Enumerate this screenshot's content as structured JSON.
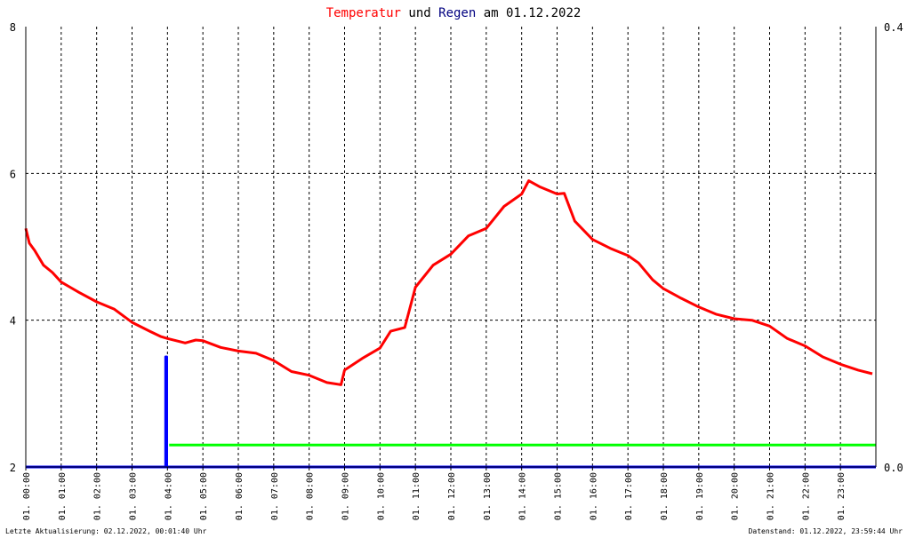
{
  "title": {
    "part1": "Temperatur",
    "part2": " und ",
    "part3": "Regen",
    "part4": " am 01.12.2022"
  },
  "colors": {
    "temperature": "#ff0000",
    "rain": "#0000ff",
    "rain_sum": "#00ff00",
    "title_blue": "#000080",
    "frame": "#000000",
    "grid": "#000000"
  },
  "footer": {
    "left": "Letzte Aktualisierung: 02.12.2022, 00:01:40 Uhr",
    "right": "Datenstand: 01.12.2022, 23:59:44 Uhr"
  },
  "chart_data": {
    "type": "line",
    "title": "Temperatur und Regen am 01.12.2022",
    "grid": true,
    "y_left": {
      "min": 2,
      "max": 8,
      "ticks": [
        "2",
        "4",
        "6",
        "8"
      ],
      "tick_values": [
        2,
        4,
        6,
        8
      ]
    },
    "y_right": {
      "min": 0,
      "max": 0.4,
      "ticks": [
        "0.0",
        "0.4"
      ],
      "tick_values": [
        0,
        0.4
      ]
    },
    "x": {
      "min": 0,
      "max": 24,
      "unit": "hour",
      "tick_values": [
        0,
        1,
        2,
        3,
        4,
        5,
        6,
        7,
        8,
        9,
        10,
        11,
        12,
        13,
        14,
        15,
        16,
        17,
        18,
        19,
        20,
        21,
        22,
        23
      ],
      "ticks": [
        "01. 00:00",
        "01. 01:00",
        "01. 02:00",
        "01. 03:00",
        "01. 04:00",
        "01. 05:00",
        "01. 06:00",
        "01. 07:00",
        "01. 08:00",
        "01. 09:00",
        "01. 10:00",
        "01. 11:00",
        "01. 12:00",
        "01. 13:00",
        "01. 14:00",
        "01. 15:00",
        "01. 16:00",
        "01. 17:00",
        "01. 18:00",
        "01. 19:00",
        "01. 20:00",
        "01. 21:00",
        "01. 22:00",
        "01. 23:00"
      ]
    },
    "series": [
      {
        "axis": "left",
        "color": "#ff0000",
        "x": [
          0,
          0.1,
          0.25,
          0.5,
          0.75,
          1,
          1.25,
          1.5,
          2,
          2.5,
          3,
          3.5,
          3.8,
          4,
          4.5,
          4.8,
          5,
          5.5,
          6,
          6.5,
          7,
          7.5,
          8,
          8.5,
          8.9,
          9,
          9.5,
          10,
          10.3,
          10.7,
          11,
          11.5,
          12,
          12.5,
          13,
          13.5,
          14,
          14.2,
          14.5,
          15,
          15.2,
          15.5,
          16,
          16.5,
          17,
          17.3,
          17.7,
          18,
          18.5,
          19,
          19.5,
          20,
          20.5,
          21,
          21.5,
          22,
          22.5,
          23,
          23.5,
          23.9
        ],
        "y": [
          5.25,
          5.05,
          4.95,
          4.75,
          4.65,
          4.52,
          4.45,
          4.38,
          4.25,
          4.15,
          3.97,
          3.85,
          3.78,
          3.75,
          3.69,
          3.73,
          3.72,
          3.63,
          3.58,
          3.55,
          3.45,
          3.3,
          3.25,
          3.15,
          3.12,
          3.32,
          3.48,
          3.62,
          3.85,
          3.9,
          4.45,
          4.75,
          4.9,
          5.15,
          5.25,
          5.55,
          5.72,
          5.9,
          5.82,
          5.72,
          5.73,
          5.35,
          5.1,
          4.98,
          4.88,
          4.78,
          4.55,
          4.43,
          4.3,
          4.18,
          4.08,
          4.02,
          4.0,
          3.92,
          3.75,
          3.65,
          3.5,
          3.4,
          3.32,
          3.27
        ]
      },
      {
        "axis": "right",
        "color": "#0000ff",
        "x": [
          0,
          3.95,
          3.95,
          3.98,
          3.98,
          24
        ],
        "y": [
          0,
          0,
          0.1,
          0.1,
          0,
          0
        ]
      },
      {
        "axis": "left",
        "color": "#00ff00",
        "x": [
          4.05,
          24
        ],
        "y": [
          2.3,
          2.3
        ]
      }
    ]
  }
}
